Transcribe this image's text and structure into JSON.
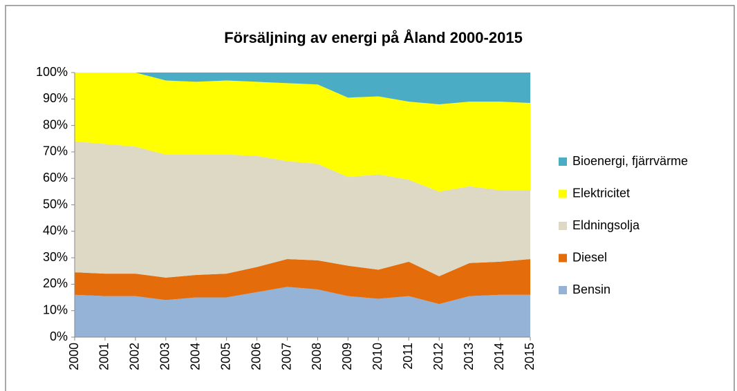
{
  "chart_data": {
    "type": "stacked_area_100",
    "title": "Försäljning  av energi på Åland 2000-2015",
    "categories": [
      "2000",
      "2001",
      "2002",
      "2003",
      "2004",
      "2005",
      "2006",
      "2007",
      "2008",
      "2009",
      "2010",
      "2011",
      "2012",
      "2013",
      "2014",
      "2015"
    ],
    "series": [
      {
        "name": "Bensin",
        "color": "#95b3d7",
        "values": [
          16,
          15.5,
          15.5,
          14,
          15,
          15,
          17,
          19,
          18,
          15.5,
          14.5,
          15.5,
          12.5,
          15.5,
          16,
          16
        ]
      },
      {
        "name": "Diesel",
        "color": "#e46c0a",
        "values": [
          8.5,
          8.5,
          8.5,
          8.5,
          8.5,
          9,
          9.5,
          10.5,
          11,
          11.5,
          11,
          13,
          10.5,
          12.5,
          12.5,
          13.5
        ]
      },
      {
        "name": "Eldningsolja",
        "color": "#ddd9c4",
        "values": [
          49.5,
          49,
          48,
          46.5,
          45.5,
          45,
          42,
          37,
          36.5,
          33.5,
          36,
          31,
          32,
          29,
          27,
          26
        ]
      },
      {
        "name": "Elektricitet",
        "color": "#ffff00",
        "values": [
          26,
          27,
          28,
          28,
          27.5,
          28,
          28,
          29.5,
          30,
          30,
          29.5,
          29.5,
          33,
          32,
          33.5,
          33
        ]
      },
      {
        "name": "Bioenergi, fjärrvärme",
        "color": "#4bacc6",
        "values": [
          0,
          0,
          0,
          3,
          3.5,
          3,
          3.5,
          4,
          4.5,
          9.5,
          9,
          11,
          12,
          11,
          11,
          11.5
        ]
      }
    ],
    "ylim": [
      0,
      100
    ],
    "yticks": [
      {
        "value": 0,
        "label": "0%"
      },
      {
        "value": 10,
        "label": "10%"
      },
      {
        "value": 20,
        "label": "20%"
      },
      {
        "value": 30,
        "label": "30%"
      },
      {
        "value": 40,
        "label": "40%"
      },
      {
        "value": 50,
        "label": "50%"
      },
      {
        "value": 60,
        "label": "60%"
      },
      {
        "value": 70,
        "label": "70%"
      },
      {
        "value": 80,
        "label": "80%"
      },
      {
        "value": 90,
        "label": "90%"
      },
      {
        "value": 100,
        "label": "100%"
      }
    ],
    "legend": "right"
  }
}
